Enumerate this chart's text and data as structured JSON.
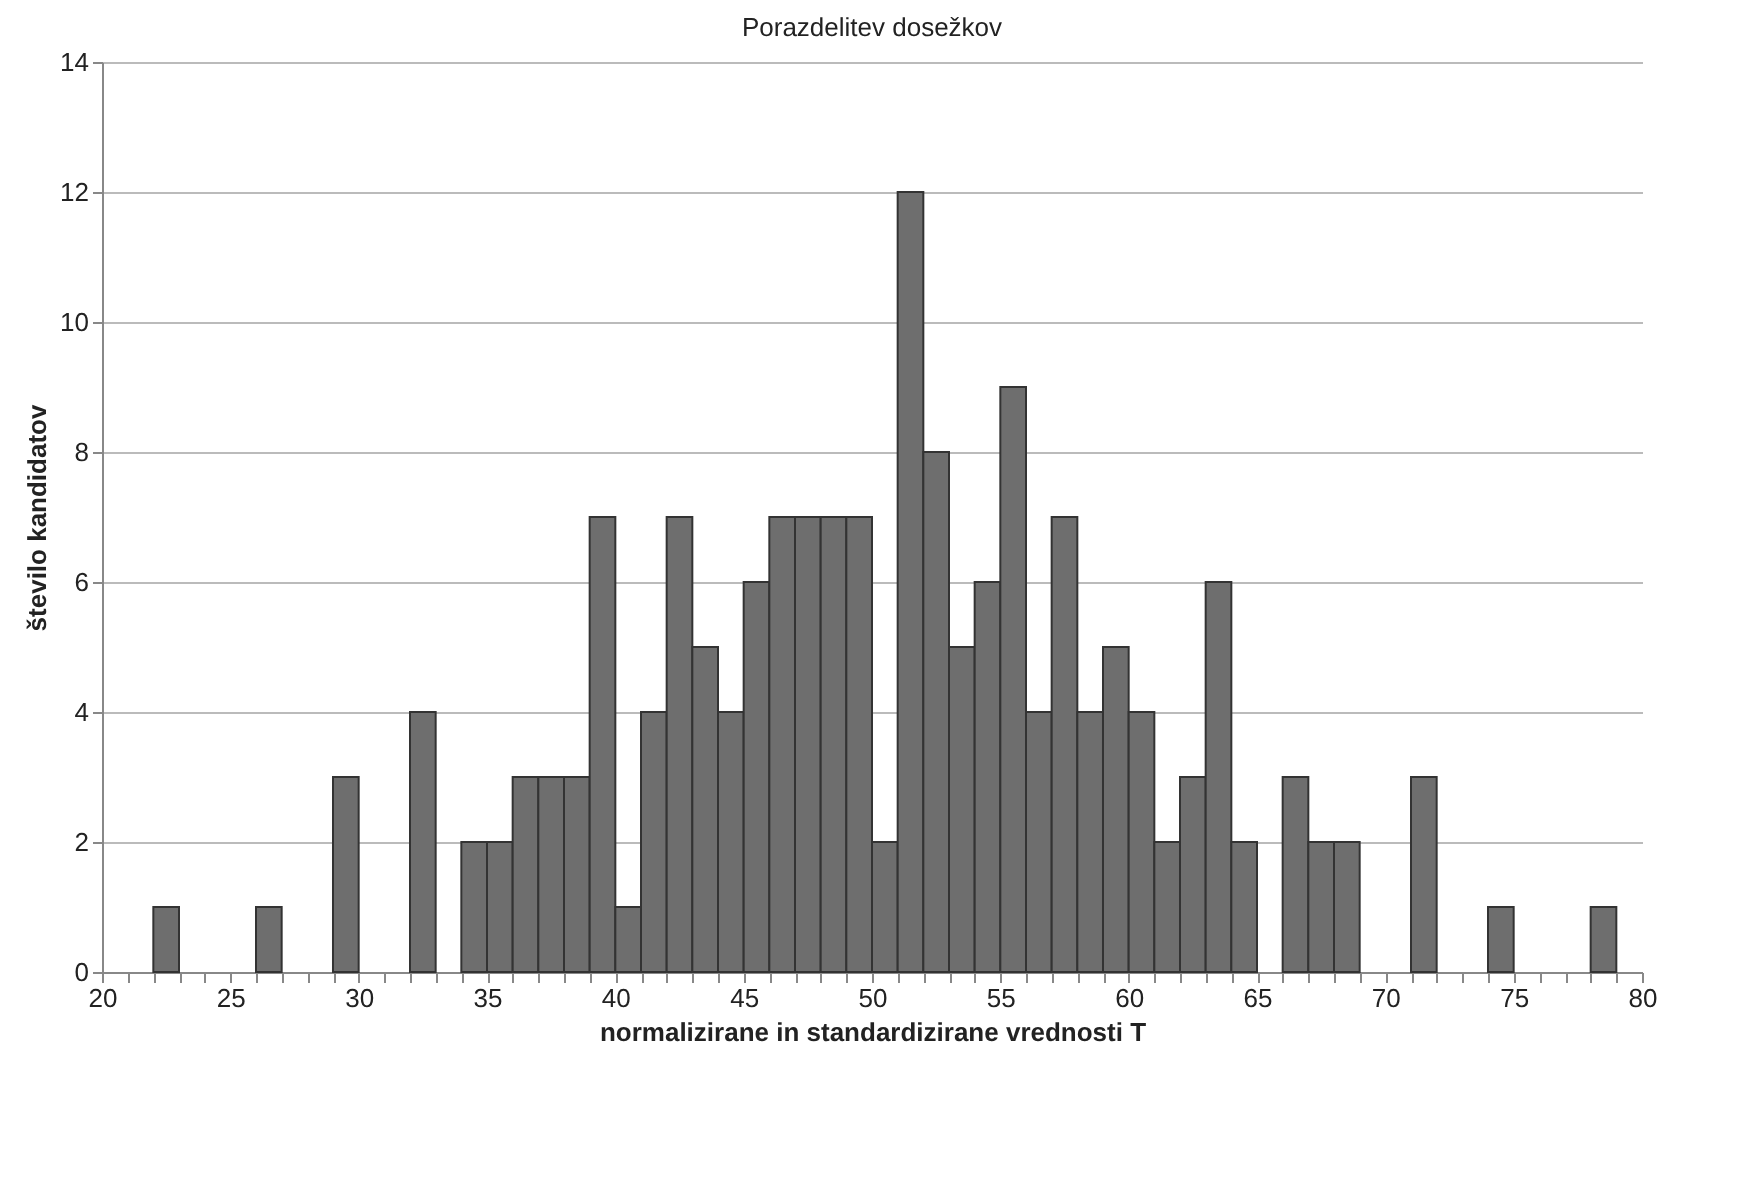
{
  "chart_data": {
    "type": "histogram",
    "title": "Porazdelitev dosežkov",
    "xlabel": "normalizirane in standardizirane vrednosti  T",
    "ylabel": "število kandidatov",
    "bins": [
      20,
      21,
      22,
      23,
      24,
      25,
      26,
      27,
      28,
      29,
      30,
      31,
      32,
      33,
      34,
      35,
      36,
      37,
      38,
      39,
      40,
      41,
      42,
      43,
      44,
      45,
      46,
      47,
      48,
      49,
      50,
      51,
      52,
      53,
      54,
      55,
      56,
      57,
      58,
      59,
      60,
      61,
      62,
      63,
      64,
      65,
      66,
      67,
      68,
      69,
      70,
      71,
      72,
      73,
      74,
      75,
      76,
      77,
      78,
      79,
      80
    ],
    "values": [
      0,
      0,
      1,
      0,
      0,
      0,
      1,
      0,
      0,
      3,
      0,
      0,
      4,
      0,
      2,
      2,
      3,
      3,
      3,
      7,
      1,
      4,
      7,
      5,
      4,
      6,
      7,
      7,
      7,
      7,
      2,
      12,
      8,
      5,
      6,
      9,
      4,
      7,
      4,
      5,
      4,
      2,
      3,
      6,
      2,
      0,
      3,
      2,
      2,
      0,
      0,
      3,
      0,
      0,
      1,
      0,
      0,
      0,
      1,
      0
    ],
    "color": "#6e6e6e",
    "xlim": [
      20,
      80
    ],
    "xticks": [
      20,
      25,
      30,
      35,
      40,
      45,
      50,
      55,
      60,
      65,
      70,
      75,
      80
    ],
    "ylim": [
      0,
      14
    ],
    "yticks": [
      0,
      2,
      4,
      6,
      8,
      10,
      12,
      14
    ],
    "grid": "y"
  }
}
